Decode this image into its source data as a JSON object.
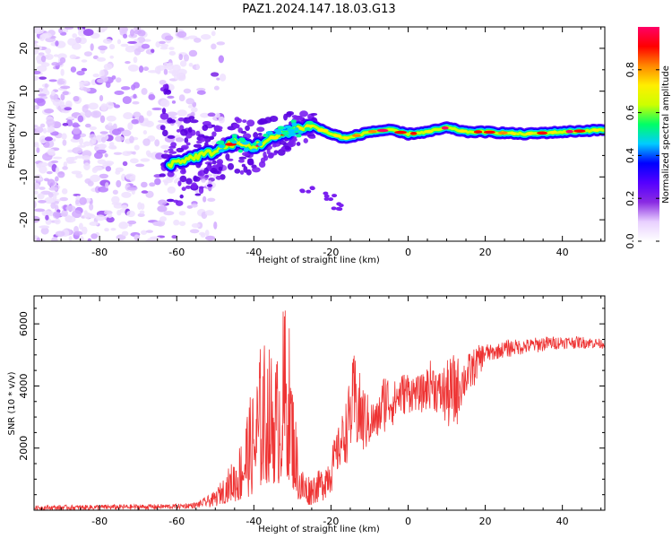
{
  "title": "PAZ1.2024.147.18.03.G13",
  "chart_data": [
    {
      "type": "heatmap",
      "xlabel": "Height of straight line (km)",
      "ylabel": "Frequency (Hz)",
      "xlim": [
        -97,
        51
      ],
      "ylim": [
        -25,
        25
      ],
      "xticks": [
        -80,
        -60,
        -40,
        -20,
        0,
        20,
        40
      ],
      "yticks": [
        -20,
        -10,
        0,
        10,
        20
      ],
      "colorbar": {
        "label": "Normalized spectral amplitude",
        "range": [
          0,
          1
        ],
        "ticks": [
          "0.0",
          "0.2",
          "0.4",
          "0.6",
          "0.8"
        ],
        "colormap": [
          "#ffffff",
          "#e8d0ff",
          "#8a2be2",
          "#5500ff",
          "#0000ff",
          "#00ccff",
          "#00ff66",
          "#ccff00",
          "#ffee00",
          "#ff8800",
          "#ff0000",
          "#ff0066"
        ]
      },
      "ridge": {
        "description_points": [
          [
            -62,
            -7
          ],
          [
            -50,
            -4
          ],
          [
            -45,
            -2
          ],
          [
            -40,
            -3
          ],
          [
            -35,
            -1
          ],
          [
            -30,
            1
          ],
          [
            -25,
            2
          ],
          [
            -20,
            0
          ],
          [
            -16,
            -1
          ],
          [
            -10,
            0.5
          ],
          [
            -5,
            1
          ],
          [
            0,
            0
          ],
          [
            5,
            0.5
          ],
          [
            10,
            1.5
          ],
          [
            15,
            0.5
          ],
          [
            20,
            0.5
          ],
          [
            30,
            0
          ],
          [
            40,
            0.5
          ],
          [
            51,
            1
          ]
        ],
        "stray_cluster": [
          [
            -26,
            -13
          ],
          [
            -20,
            -14.5
          ],
          [
            -18,
            -17
          ]
        ]
      }
    },
    {
      "type": "line",
      "xlabel": "Height of straight line (km)",
      "ylabel": "SNR (10 * v/v)",
      "xlim": [
        -97,
        51
      ],
      "ylim": [
        0,
        6900
      ],
      "xticks": [
        -80,
        -60,
        -40,
        -20,
        0,
        20,
        40
      ],
      "yticks": [
        2000,
        4000,
        6000
      ],
      "series": [
        {
          "color": "#ee3333",
          "envelope": {
            "x": [
              -97,
              -80,
              -60,
              -55,
              -50,
              -46,
              -44,
              -42,
              -40,
              -38,
              -36,
              -34,
              -32,
              -31,
              -30,
              -28,
              -26,
              -24,
              -22,
              -20,
              -18,
              -16,
              -14,
              -12,
              -10,
              -8,
              -6,
              -4,
              -2,
              0,
              2,
              4,
              6,
              8,
              10,
              12,
              14,
              16,
              18,
              20,
              22,
              24,
              26,
              28,
              30,
              35,
              40,
              45,
              51
            ],
            "low": [
              0,
              0,
              30,
              60,
              100,
              300,
              250,
              400,
              500,
              700,
              900,
              800,
              900,
              1000,
              700,
              200,
              150,
              200,
              300,
              500,
              1200,
              1500,
              1800,
              1600,
              2000,
              2200,
              2500,
              2700,
              3000,
              3100,
              3200,
              3100,
              3300,
              3000,
              2600,
              2300,
              3400,
              3700,
              4200,
              4700,
              4800,
              4900,
              4900,
              5000,
              5000,
              5100,
              5200,
              5200,
              5200
            ],
            "high": [
              150,
              180,
              200,
              250,
              600,
              1500,
              2000,
              3300,
              4000,
              5600,
              5300,
              5000,
              6900,
              6400,
              4300,
              1500,
              1200,
              1200,
              1400,
              2000,
              2700,
              3600,
              5100,
              4200,
              3600,
              3500,
              4600,
              4100,
              4400,
              4500,
              4300,
              4400,
              4900,
              4500,
              4800,
              5100,
              4800,
              5100,
              5300,
              5400,
              5300,
              5400,
              5500,
              5500,
              5500,
              5600,
              5600,
              5600,
              5500
            ]
          }
        }
      ]
    }
  ]
}
